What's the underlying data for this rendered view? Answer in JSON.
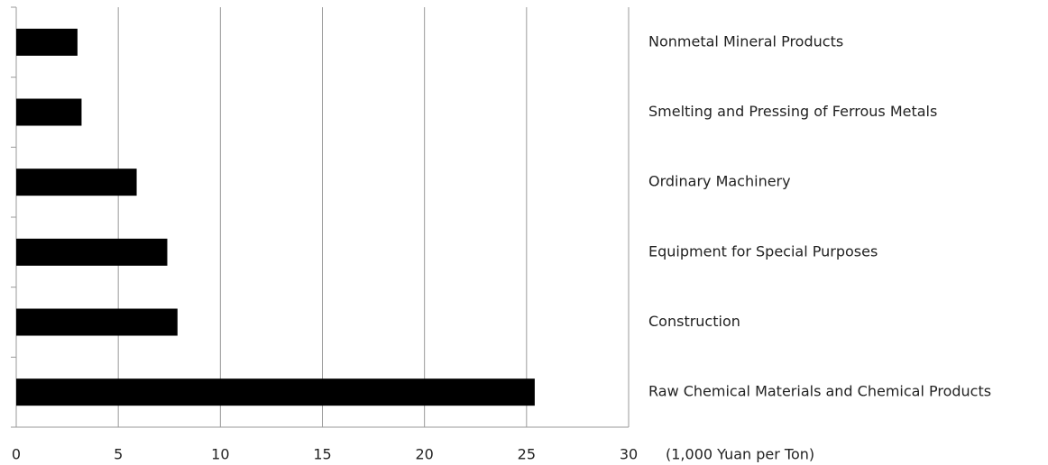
{
  "chart_data": {
    "type": "hbar",
    "categories": [
      "Nonmetal Mineral Products",
      "Smelting and Pressing of Ferrous Metals",
      "Ordinary Machinery",
      "Equipment for Special Purposes",
      "Construction",
      "Raw Chemical Materials and Chemical Products"
    ],
    "values": [
      3.0,
      3.2,
      5.9,
      7.4,
      7.9,
      25.4
    ],
    "color": "#000000",
    "x_label": "(1,000 Yuan per Ton)",
    "xlim": [
      0,
      30
    ],
    "xticks": [
      0,
      5,
      10,
      15,
      20,
      25,
      30
    ],
    "grid": true
  }
}
